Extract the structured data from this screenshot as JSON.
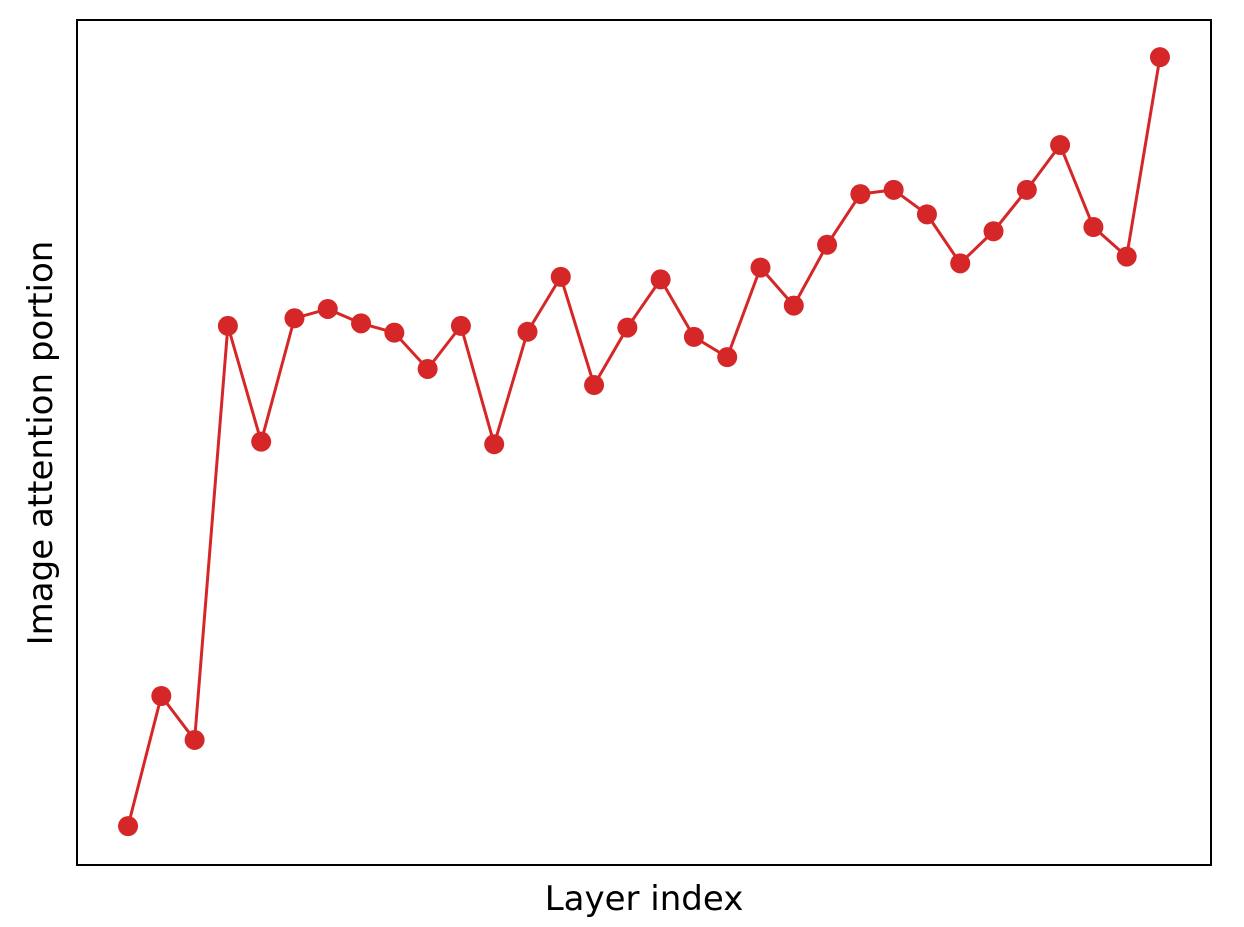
{
  "chart_data": {
    "type": "line",
    "xlabel": "Layer index",
    "ylabel": "Image attention portion",
    "categories": [
      null,
      null,
      null,
      null,
      null,
      null,
      null,
      null,
      null,
      null,
      null,
      null,
      null,
      null,
      null,
      null,
      null,
      null,
      null,
      null,
      null,
      null,
      null,
      null,
      null,
      null,
      null,
      null,
      null,
      null,
      null,
      null
    ],
    "series": [
      {
        "color": "#d62728",
        "values": [
          0.046,
          0.2,
          0.148,
          0.638,
          0.501,
          0.647,
          0.658,
          0.641,
          0.63,
          0.587,
          0.638,
          0.498,
          0.631,
          0.696,
          0.568,
          0.636,
          0.693,
          0.625,
          0.601,
          0.707,
          0.662,
          0.734,
          0.794,
          0.799,
          0.77,
          0.712,
          0.75,
          0.799,
          0.852,
          0.755,
          0.72,
          0.956
        ]
      }
    ],
    "ylim": [
      0,
      1
    ]
  }
}
